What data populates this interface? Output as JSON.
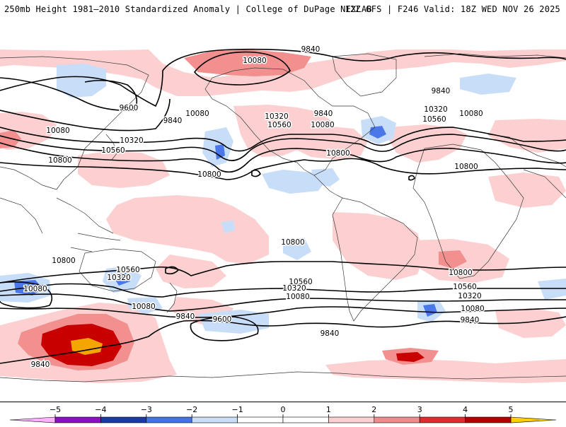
{
  "header": {
    "left_title": "250mb Height 1981–2010 Standardized Anomaly | College of DuPage NEXLAB",
    "right_title": "12Z GFS | F246 Valid: 18Z WED NOV 26 2025"
  },
  "map": {
    "contour_labels": [
      {
        "text": "10080",
        "role": "north-arctic-label"
      },
      {
        "text": "9840",
        "role": "north-arctic-label"
      },
      {
        "text": "9600",
        "role": "north-pacific-label"
      },
      {
        "text": "9840",
        "role": "north-pacific-label"
      },
      {
        "text": "10080",
        "role": "north-pacific-label"
      },
      {
        "text": "10080",
        "role": "north-asia-label"
      },
      {
        "text": "10320",
        "role": "north-pacific-label"
      },
      {
        "text": "10560",
        "role": "north-pacific-label"
      },
      {
        "text": "10800",
        "role": "north-pacific-label"
      },
      {
        "text": "10800",
        "role": "north-pacific-label"
      },
      {
        "text": "10320",
        "role": "north-america-label"
      },
      {
        "text": "10560",
        "role": "north-america-label"
      },
      {
        "text": "9840",
        "role": "north-america-label"
      },
      {
        "text": "10080",
        "role": "north-america-label"
      },
      {
        "text": "10800",
        "role": "north-america-label"
      },
      {
        "text": "9840",
        "role": "north-atlantic-label"
      },
      {
        "text": "10320",
        "role": "north-atlantic-label"
      },
      {
        "text": "10560",
        "role": "north-atlantic-label"
      },
      {
        "text": "10080",
        "role": "europe-label"
      },
      {
        "text": "10800",
        "role": "africa-label"
      },
      {
        "text": "10800",
        "role": "south-pacific-label"
      },
      {
        "text": "10800",
        "role": "south-america-label"
      },
      {
        "text": "10080",
        "role": "south-pacific-label"
      },
      {
        "text": "10560",
        "role": "south-pacific-label"
      },
      {
        "text": "10320",
        "role": "south-pacific-label"
      },
      {
        "text": "10080",
        "role": "south-pacific-label"
      },
      {
        "text": "9840",
        "role": "south-pacific-label"
      },
      {
        "text": "9600",
        "role": "south-pacific-label"
      },
      {
        "text": "10560",
        "role": "south-atlantic-label"
      },
      {
        "text": "10320",
        "role": "south-atlantic-label"
      },
      {
        "text": "10080",
        "role": "south-atlantic-label"
      },
      {
        "text": "10800",
        "role": "south-atlantic-label"
      },
      {
        "text": "10560",
        "role": "south-atlantic-label"
      },
      {
        "text": "10320",
        "role": "south-atlantic-label"
      },
      {
        "text": "10080",
        "role": "south-atlantic-label"
      },
      {
        "text": "9840",
        "role": "south-atlantic-label"
      },
      {
        "text": "9840",
        "role": "south-indian-label"
      },
      {
        "text": "9840",
        "role": "south-west-label"
      }
    ]
  },
  "colorbar": {
    "ticks": [
      "−5",
      "−4",
      "−3",
      "−2",
      "−1",
      "0",
      "1",
      "2",
      "3",
      "4",
      "5"
    ],
    "tick_values": [
      -5,
      -4,
      -3,
      -2,
      -1,
      0,
      1,
      2,
      3,
      4,
      5
    ],
    "colors": [
      "#f7a8f2",
      "#8a10c0",
      "#1a3aa8",
      "#4472e8",
      "#c8def8",
      "#ffffff",
      "#fcd0d0",
      "#f28c8c",
      "#dc2f2f",
      "#b00000",
      "#f5a300"
    ],
    "under_color": "#ffb0ff",
    "over_color": "#ffd000"
  },
  "colors": {
    "pos1": "#fcd0d0",
    "pos2": "#f29090",
    "pos3": "#c80000",
    "pos4": "#f5a500",
    "neg1": "#c8def8",
    "neg2": "#4a78e8",
    "contour": "#000000",
    "coast": "#3a3a3a"
  }
}
